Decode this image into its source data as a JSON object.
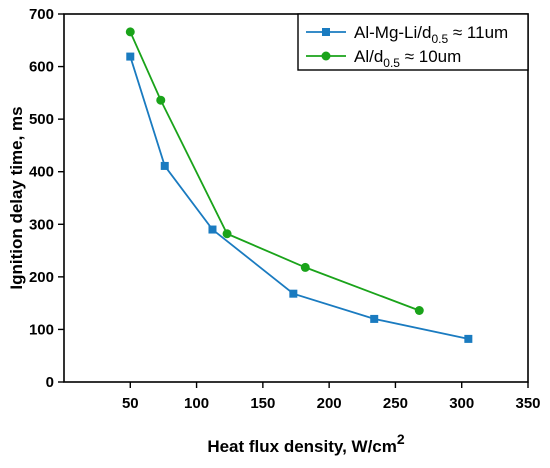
{
  "chart_data": {
    "type": "line",
    "xlabel": "Heat flux density, W/cm",
    "xlabel_sup": "2",
    "ylabel": "Ignition delay time, ms",
    "xlim": [
      0,
      350
    ],
    "ylim": [
      0,
      700
    ],
    "xticks": [
      50,
      100,
      150,
      200,
      250,
      300,
      350
    ],
    "yticks": [
      0,
      100,
      200,
      300,
      400,
      500,
      600,
      700
    ],
    "grid": false,
    "legend_position": "top-right",
    "series": [
      {
        "legend_parts": [
          "Al-Mg-Li/d",
          "0.5",
          " ≈ 11um"
        ],
        "marker": "square",
        "color": "#1a7bc0",
        "x": [
          50,
          76,
          112,
          173,
          234,
          305
        ],
        "y": [
          619,
          411,
          290,
          168,
          120,
          82
        ]
      },
      {
        "legend_parts": [
          "Al/d",
          "0.5",
          " ≈ 10um"
        ],
        "marker": "circle",
        "color": "#1aa31a",
        "x": [
          50,
          73,
          123,
          182,
          268
        ],
        "y": [
          666,
          536,
          282,
          218,
          136
        ]
      }
    ]
  }
}
